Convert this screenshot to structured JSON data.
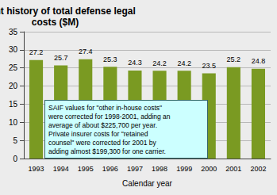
{
  "chart_data": {
    "type": "bar",
    "title": "Recent history of total defense legal costs ($M)",
    "categories": [
      "1993",
      "1994",
      "1995",
      "1996",
      "1997",
      "1998",
      "1999",
      "2000",
      "2001",
      "2002"
    ],
    "values": [
      27.2,
      25.7,
      27.4,
      25.3,
      24.3,
      24.2,
      24.2,
      23.5,
      25.2,
      24.8
    ],
    "color": "#7a9a22",
    "x_label": "Calendar year",
    "annotations": [
      "SAIF values for \"other in-house costs\" were corrected for 1998-2001, adding an average of about $225,700 per year. Private insurer costs for \"retained counsel\" were corrected for 2001 by adding almost $199,300 for one carrier."
    ],
    "ylim": [
      0,
      35
    ],
    "yticks": [
      0,
      5,
      10,
      15,
      20,
      25,
      30,
      35
    ],
    "grid": true,
    "data_labels": true
  }
}
